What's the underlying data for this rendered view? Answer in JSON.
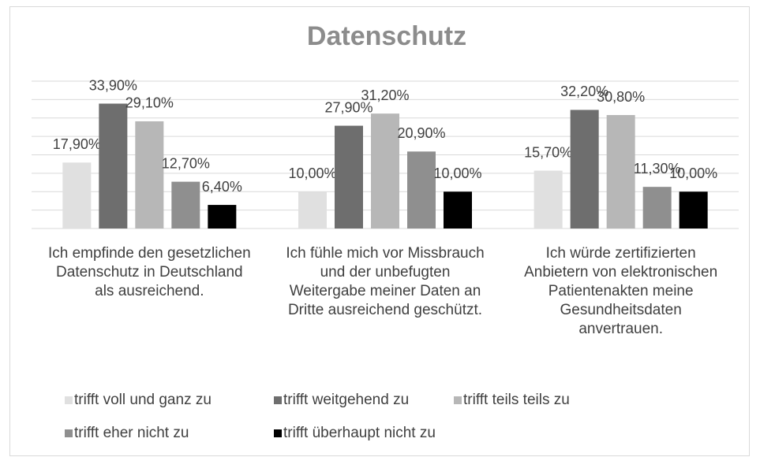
{
  "chart_data": {
    "type": "bar",
    "title": "Datenschutz",
    "categories": [
      "Ich empfinde den gesetzlichen Datenschutz in Deutschland als ausreichend.",
      "Ich fühle mich vor Missbrauch und der unbefugten Weitergabe meiner Daten an Dritte ausreichend geschützt.",
      "Ich würde zertifizierten Anbietern von elektronischen Patientenakten meine Gesundheitsdaten anvertrauen."
    ],
    "series": [
      {
        "name": "trifft voll und ganz zu",
        "color": "#e0e0e0",
        "values": [
          17.9,
          10.0,
          15.7
        ],
        "value_labels": [
          "17,90%",
          "10,00%",
          "15,70%"
        ]
      },
      {
        "name": "trifft weitgehend zu",
        "color": "#6e6e6e",
        "values": [
          33.9,
          27.9,
          32.2
        ],
        "value_labels": [
          "33,90%",
          "27,90%",
          "32,20%"
        ]
      },
      {
        "name": "trifft teils teils zu",
        "color": "#b7b7b7",
        "values": [
          29.1,
          31.2,
          30.8
        ],
        "value_labels": [
          "29,10%",
          "31,20%",
          "30,80%"
        ]
      },
      {
        "name": "trifft eher nicht zu",
        "color": "#8f8f8f",
        "values": [
          12.7,
          20.9,
          11.3
        ],
        "value_labels": [
          "12,70%",
          "20,90%",
          "11,30%"
        ]
      },
      {
        "name": "trifft überhaupt nicht zu",
        "color": "#000000",
        "values": [
          6.4,
          10.0,
          10.0
        ],
        "value_labels": [
          "6,40%",
          "10,00%",
          "10,00%"
        ]
      }
    ],
    "ylim": [
      0,
      40
    ],
    "yticks": [
      0,
      5,
      10,
      15,
      20,
      25,
      30,
      35,
      40
    ],
    "grid": true,
    "legend": "bottom"
  }
}
